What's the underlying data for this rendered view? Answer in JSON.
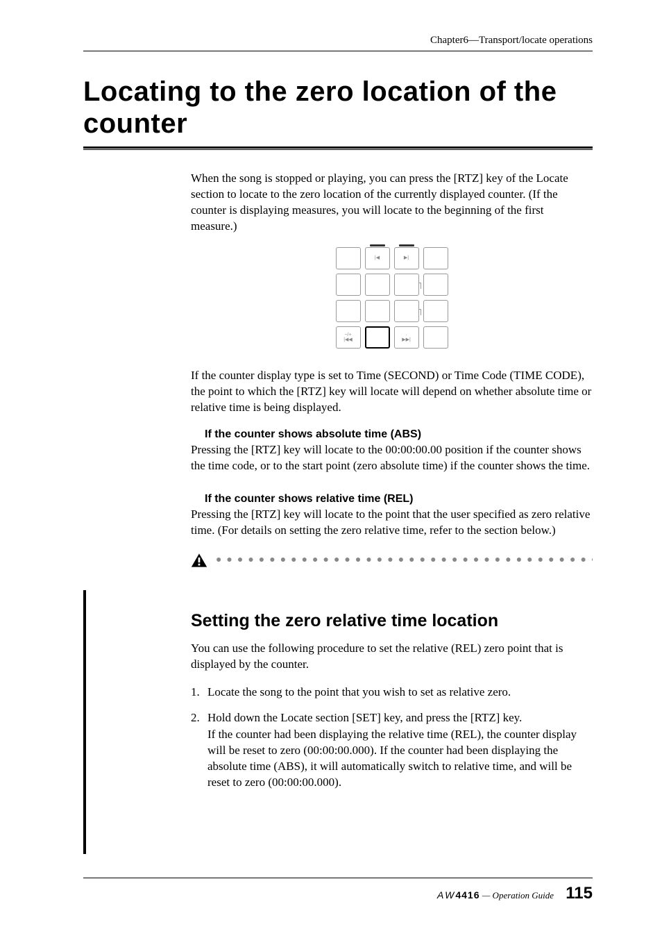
{
  "header": {
    "chapter_line": "Chapter6—Transport/locate operations"
  },
  "main_heading": "Locating to the zero location of the counter",
  "intro_text": "When the song is stopped or playing, you can press the [RTZ] key of the Locate section to locate to the zero location of the currently displayed counter. (If the counter is displaying measures, you will locate to the beginning of the first measure.)",
  "keypad": {
    "rows": [
      [
        {
          "label": "",
          "bold": false,
          "top_accent": false
        },
        {
          "label": "|◀",
          "bold": false,
          "top_accent": true
        },
        {
          "label": "▶|",
          "bold": false,
          "top_accent": true
        },
        {
          "label": "",
          "bold": false,
          "top_accent": false
        }
      ],
      [
        {
          "label": "",
          "bold": false
        },
        {
          "label": "",
          "bold": false
        },
        {
          "label": "",
          "bold": false,
          "right_tick": true
        },
        {
          "label": "",
          "bold": false
        }
      ],
      [
        {
          "label": "",
          "bold": false
        },
        {
          "label": "",
          "bold": false
        },
        {
          "label": "",
          "bold": false,
          "right_tick": true
        },
        {
          "label": "",
          "bold": false
        }
      ],
      [
        {
          "label": "−/+\n|◀◀",
          "bold": false
        },
        {
          "label": "",
          "bold": true
        },
        {
          "label": "·\n▶▶|",
          "bold": false
        },
        {
          "label": "",
          "bold": false
        }
      ]
    ]
  },
  "para_after_figure": "If the counter display type is set to Time (SECOND) or Time Code (TIME CODE), the point to which the [RTZ] key will locate will depend on whether absolute time or relative time is being displayed.",
  "abs_section": {
    "heading": "If the counter shows absolute time (ABS)",
    "body": "Pressing the [RTZ] key will locate to the 00:00:00.00 position if the counter shows the time code, or to the start point (zero absolute time) if the counter shows the time."
  },
  "rel_section": {
    "heading": "If the counter shows relative time (REL)",
    "body": "Pressing the [RTZ] key will locate to the point that the user specified as zero relative time. (For details on setting the zero relative time, refer to the section below.)"
  },
  "subsection": {
    "heading": "Setting the zero relative time location",
    "intro": "You can use the following procedure to set the relative (REL) zero point that is displayed by the counter.",
    "steps": [
      {
        "num": "1.",
        "heading": "Locate the song to the point that you wish to set as relative zero.",
        "body": ""
      },
      {
        "num": "2.",
        "heading": "Hold down the Locate section [SET] key, and press the [RTZ] key.",
        "body": "If the counter had been displaying the relative time (REL), the counter display will be reset to zero (00:00:00.000). If the counter had been displaying the absolute time (ABS), it will automatically switch to relative time, and will be reset to zero (00:00:00.000)."
      }
    ]
  },
  "footer": {
    "model_prefix": "AW",
    "model": "4416",
    "guide": " — Operation Guide",
    "pagenum": "115"
  },
  "colors": {
    "text": "#000000",
    "background": "#ffffff",
    "dot_color": "#888888",
    "key_border": "#999999"
  }
}
